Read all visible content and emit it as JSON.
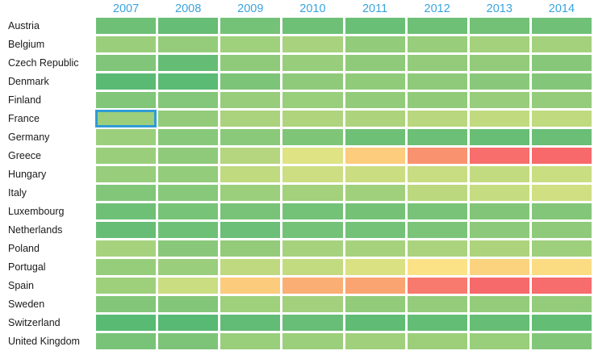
{
  "chart_data": {
    "type": "heatmap",
    "title": "",
    "x_categories": [
      "2007",
      "2008",
      "2009",
      "2010",
      "2011",
      "2012",
      "2013",
      "2014"
    ],
    "row_categories": [
      "Austria",
      "Belgium",
      "Czech Republic",
      "Denmark",
      "Finland",
      "France",
      "Germany",
      "Greece",
      "Hungary",
      "Italy",
      "Luxembourg",
      "Netherlands",
      "Poland",
      "Portugal",
      "Spain",
      "Sweden",
      "Switzerland",
      "United Kingdom"
    ],
    "legend": "none",
    "grid_gap_color": "#ffffff",
    "color_scale": {
      "low": "#63be7b",
      "mid": "#ffeb84",
      "high": "#f8696b"
    },
    "cell_colors": [
      [
        "#6dc076",
        "#66bd75",
        "#74c277",
        "#6dc076",
        "#6abf76",
        "#6dc076",
        "#72c177",
        "#70c177"
      ],
      [
        "#9bce7b",
        "#94cc7b",
        "#9fd07c",
        "#a8d27d",
        "#92cb7a",
        "#97cd7b",
        "#a3d17c",
        "#a4d17c"
      ],
      [
        "#80c579",
        "#65bd75",
        "#8fca7a",
        "#97cd7b",
        "#8fca7a",
        "#93cb7a",
        "#93cb7a",
        "#87c77a"
      ],
      [
        "#5aba74",
        "#5bbb74",
        "#7cc478",
        "#8fca7a",
        "#90cb7a",
        "#8fca7a",
        "#89c87a",
        "#84c679"
      ],
      [
        "#82c679",
        "#85c77a",
        "#97cd7b",
        "#99ce7b",
        "#92cb7a",
        "#91cb7a",
        "#97cd7b",
        "#95cc7b"
      ],
      [
        "#9dce7b",
        "#93cb7a",
        "#abd27d",
        "#afd47d",
        "#add37d",
        "#b9d77e",
        "#c1da7f",
        "#c0da7f"
      ],
      [
        "#9ccf7b",
        "#88c87a",
        "#8bc97a",
        "#7fc578",
        "#6fc077",
        "#6cbf76",
        "#69be76",
        "#6abe76"
      ],
      [
        "#9ace7b",
        "#8fca7a",
        "#b5d67e",
        "#dfe383",
        "#fdcc7d",
        "#f9926f",
        "#f76e6c",
        "#f7696b"
      ],
      [
        "#97cd7b",
        "#93cc7a",
        "#c0da80",
        "#ccde81",
        "#cadd81",
        "#c8dc81",
        "#c3db80",
        "#c9dd81"
      ],
      [
        "#82c67a",
        "#88c87a",
        "#9ccf7b",
        "#a3d17c",
        "#a0d07c",
        "#bcd87f",
        "#c6dc80",
        "#cfdf82"
      ],
      [
        "#6fc077",
        "#77c377",
        "#79c378",
        "#73c277",
        "#75c277",
        "#79c378",
        "#82c579",
        "#83c679"
      ],
      [
        "#67bd75",
        "#6fc077",
        "#6bbf76",
        "#74c277",
        "#74c277",
        "#7cc478",
        "#8dc97a",
        "#8eca7a"
      ],
      [
        "#a7d27d",
        "#89c87a",
        "#93cb7a",
        "#a7d27d",
        "#a7d27d",
        "#abd37d",
        "#add37d",
        "#9ecf7c"
      ],
      [
        "#96cd7b",
        "#9bce7c",
        "#bed980",
        "#c3db80",
        "#d9e183",
        "#fce287",
        "#fbd37f",
        "#fcdc82"
      ],
      [
        "#9ed07c",
        "#cadd81",
        "#fdcb7c",
        "#fbae74",
        "#faa471",
        "#f8796e",
        "#f76a6b",
        "#f76c6c"
      ],
      [
        "#83c679",
        "#84c679",
        "#9fd07c",
        "#a2d07c",
        "#92cb7a",
        "#95cc7b",
        "#95cc7b",
        "#94cc7b"
      ],
      [
        "#59ba74",
        "#57b973",
        "#62bc75",
        "#68be76",
        "#60bc74",
        "#63bd75",
        "#66bd75",
        "#63bd75"
      ],
      [
        "#79c378",
        "#7dc478",
        "#99ce7b",
        "#9ccf7b",
        "#a0d07c",
        "#9dcf7b",
        "#99ce7b",
        "#82c679"
      ]
    ],
    "selected_cell": {
      "row": "France",
      "column": "2007",
      "border_color": "#2f9cd6"
    },
    "patterned_cell": {
      "row": "Netherlands",
      "column": "2008",
      "pattern": "stipple-dots"
    }
  },
  "header": {
    "year_text_color": "#3aa3dc"
  }
}
